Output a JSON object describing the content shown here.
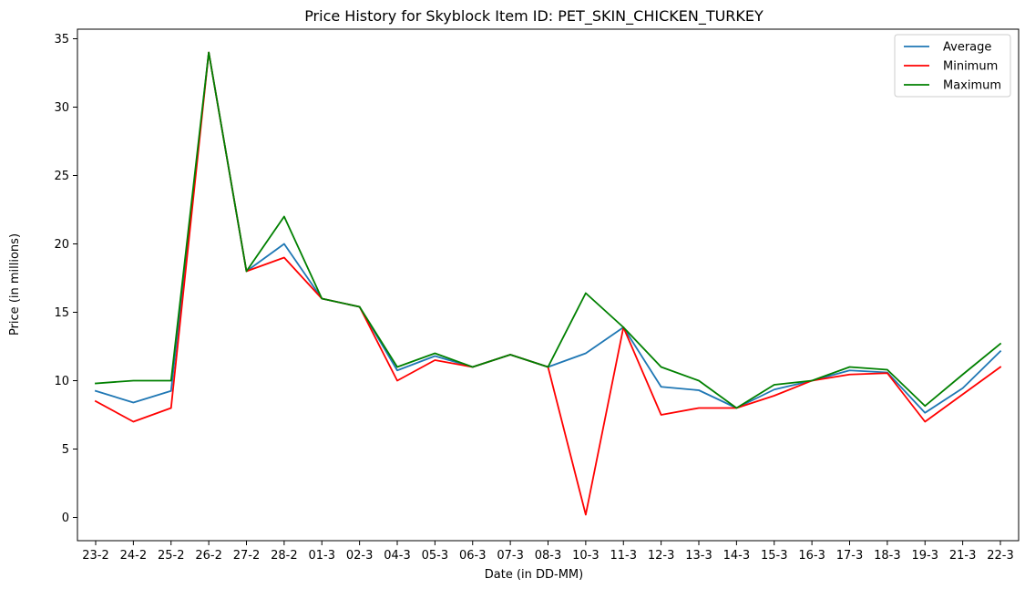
{
  "chart_data": {
    "type": "line",
    "title": "Price History for Skyblock Item ID: PET_SKIN_CHICKEN_TURKEY",
    "xlabel": "Date (in DD-MM)",
    "ylabel": "Price (in millions)",
    "ylim": [
      -1.7,
      35.7
    ],
    "yticks": [
      0,
      5,
      10,
      15,
      20,
      25,
      30,
      35
    ],
    "grid": false,
    "legend_position": "top-right",
    "categories": [
      "23-2",
      "24-2",
      "25-2",
      "26-2",
      "27-2",
      "28-2",
      "01-3",
      "02-3",
      "04-3",
      "05-3",
      "06-3",
      "07-3",
      "08-3",
      "10-3",
      "11-3",
      "12-3",
      "13-3",
      "14-3",
      "15-3",
      "16-3",
      "17-3",
      "18-3",
      "19-3",
      "21-3",
      "22-3"
    ],
    "series": [
      {
        "name": "Average",
        "color": "#1f77b4",
        "values": [
          9.25,
          8.4,
          9.25,
          34.0,
          18.0,
          20.0,
          16.0,
          15.4,
          10.75,
          11.8,
          11.0,
          11.9,
          11.0,
          12.0,
          13.9,
          9.55,
          9.3,
          8.0,
          9.35,
          10.0,
          10.75,
          10.6,
          7.65,
          9.45,
          12.15
        ]
      },
      {
        "name": "Minimum",
        "color": "#ff0000",
        "values": [
          8.5,
          7.0,
          8.0,
          34.0,
          18.0,
          19.0,
          16.0,
          15.4,
          10.0,
          11.5,
          11.0,
          11.9,
          11.0,
          0.2,
          13.9,
          7.5,
          8.0,
          8.0,
          8.9,
          10.0,
          10.45,
          10.55,
          7.0,
          9.0,
          11.0
        ]
      },
      {
        "name": "Maximum",
        "color": "#008000",
        "values": [
          9.8,
          10.0,
          10.0,
          34.0,
          18.0,
          22.0,
          16.0,
          15.4,
          11.0,
          12.0,
          11.0,
          11.9,
          11.0,
          16.4,
          13.9,
          11.0,
          10.0,
          8.0,
          9.7,
          10.0,
          11.0,
          10.8,
          8.15,
          10.45,
          12.7
        ]
      }
    ]
  }
}
